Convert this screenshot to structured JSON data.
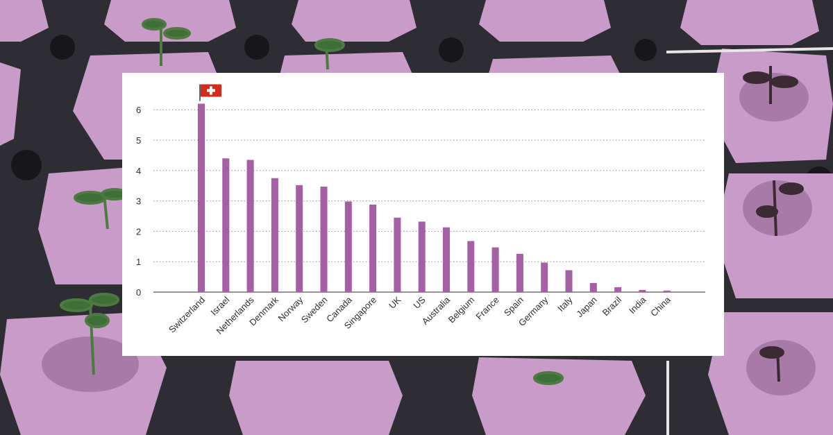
{
  "background": {
    "description_icon": "seedling-sponge-tray",
    "sponge_color": "#c99bc8",
    "tray_color": "#2e2d33"
  },
  "chart_data": {
    "type": "bar",
    "categories": [
      "Switzerland",
      "Israel",
      "Netherlands",
      "Denmark",
      "Norway",
      "Sweden",
      "Canada",
      "Singapore",
      "UK",
      "US",
      "Australia",
      "Belgium",
      "France",
      "Spain",
      "Germany",
      "Italy",
      "Japan",
      "Brazil",
      "India",
      "China"
    ],
    "values": [
      6.2,
      4.4,
      4.35,
      3.75,
      3.52,
      3.47,
      2.98,
      2.88,
      2.45,
      2.32,
      2.13,
      1.68,
      1.47,
      1.26,
      0.97,
      0.72,
      0.3,
      0.16,
      0.07,
      0.05
    ],
    "yticks": [
      0,
      1,
      2,
      3,
      4,
      5,
      6
    ],
    "ylim": [
      0,
      6.4
    ],
    "title": "",
    "xlabel": "",
    "ylabel": "",
    "grid": true,
    "bar_color": "#a55fa4",
    "grid_color": "#8a8a8a",
    "highlight_icon": "swiss-flag-icon",
    "flag_color": "#d52b1e"
  }
}
